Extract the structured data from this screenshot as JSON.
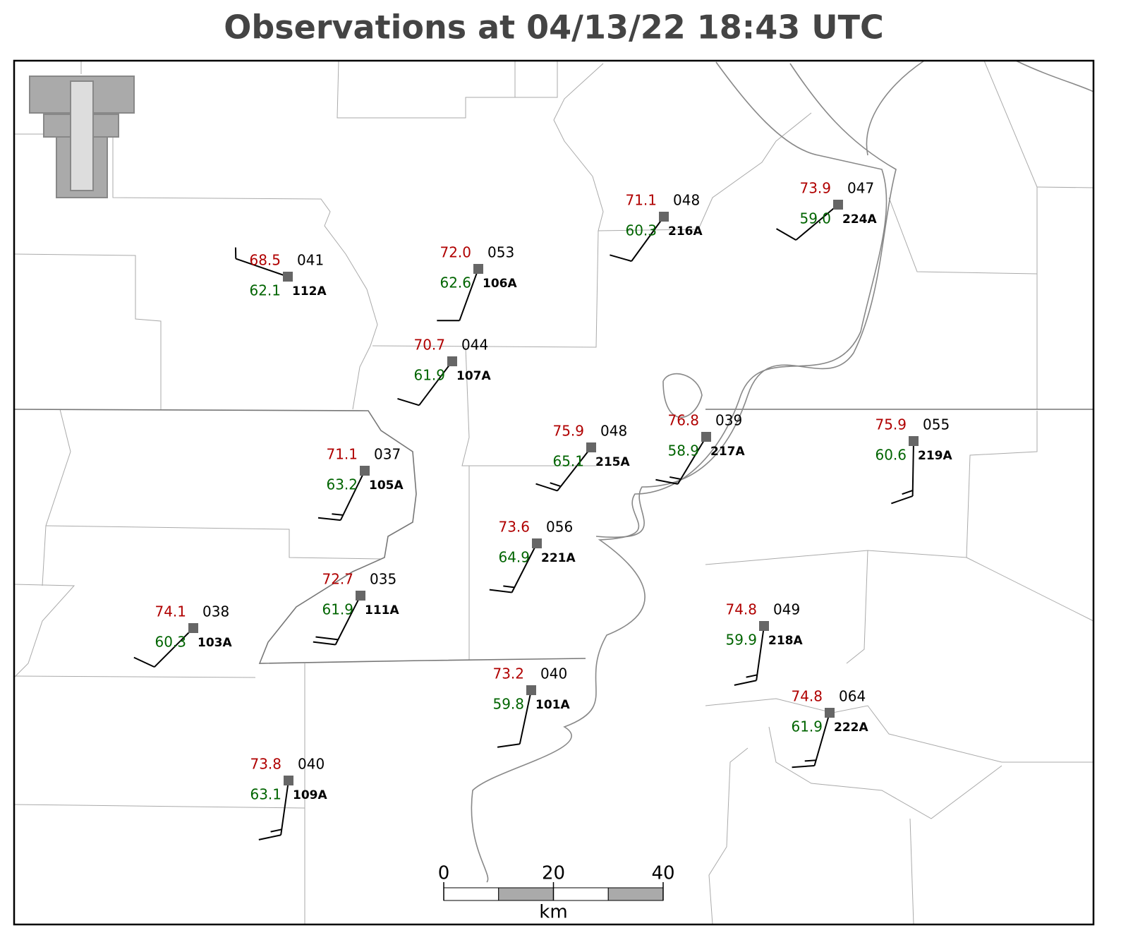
{
  "title": "Observations at 04/13/22 18:43 UTC",
  "stations": [
    {
      "id": "112A",
      "temp": "68.5",
      "dewpoint": "62.1",
      "pressure": "041",
      "wind_dir": 289,
      "wind_kt": 5
    },
    {
      "id": "106A",
      "temp": "72.0",
      "dewpoint": "62.6",
      "pressure": "053",
      "wind_dir": 200,
      "wind_kt": 10
    },
    {
      "id": "216A",
      "temp": "71.1",
      "dewpoint": "60.3",
      "pressure": "048",
      "wind_dir": 216,
      "wind_kt": 10
    },
    {
      "id": "224A",
      "temp": "73.9",
      "dewpoint": "59.0",
      "pressure": "047",
      "wind_dir": 230,
      "wind_kt": 10
    },
    {
      "id": "107A",
      "temp": "70.7",
      "dewpoint": "61.9",
      "pressure": "044",
      "wind_dir": 217,
      "wind_kt": 10
    },
    {
      "id": "105A",
      "temp": "71.1",
      "dewpoint": "63.2",
      "pressure": "037",
      "wind_dir": 206,
      "wind_kt": 15
    },
    {
      "id": "215A",
      "temp": "75.9",
      "dewpoint": "65.1",
      "pressure": "048",
      "wind_dir": 218,
      "wind_kt": 15
    },
    {
      "id": "217A",
      "temp": "76.8",
      "dewpoint": "58.9",
      "pressure": "039",
      "wind_dir": 211,
      "wind_kt": 15
    },
    {
      "id": "219A",
      "temp": "75.9",
      "dewpoint": "60.6",
      "pressure": "055",
      "wind_dir": 181,
      "wind_kt": 15
    },
    {
      "id": "221A",
      "temp": "73.6",
      "dewpoint": "64.9",
      "pressure": "056",
      "wind_dir": 207,
      "wind_kt": 15
    },
    {
      "id": "111A",
      "temp": "72.7",
      "dewpoint": "61.9",
      "pressure": "035",
      "wind_dir": 207,
      "wind_kt": 20
    },
    {
      "id": "103A",
      "temp": "74.1",
      "dewpoint": "60.3",
      "pressure": "038",
      "wind_dir": 225,
      "wind_kt": 10
    },
    {
      "id": "218A",
      "temp": "74.8",
      "dewpoint": "59.9",
      "pressure": "049",
      "wind_dir": 188,
      "wind_kt": 15
    },
    {
      "id": "101A",
      "temp": "73.2",
      "dewpoint": "59.8",
      "pressure": "040",
      "wind_dir": 192,
      "wind_kt": 10
    },
    {
      "id": "222A",
      "temp": "74.8",
      "dewpoint": "61.9",
      "pressure": "064",
      "wind_dir": 196,
      "wind_kt": 15
    },
    {
      "id": "109A",
      "temp": "73.8",
      "dewpoint": "63.1",
      "pressure": "040",
      "wind_dir": 188,
      "wind_kt": 15
    }
  ],
  "scale_bar": {
    "ticks": [
      0,
      20,
      40
    ],
    "unit": "km",
    "segment": 10
  }
}
